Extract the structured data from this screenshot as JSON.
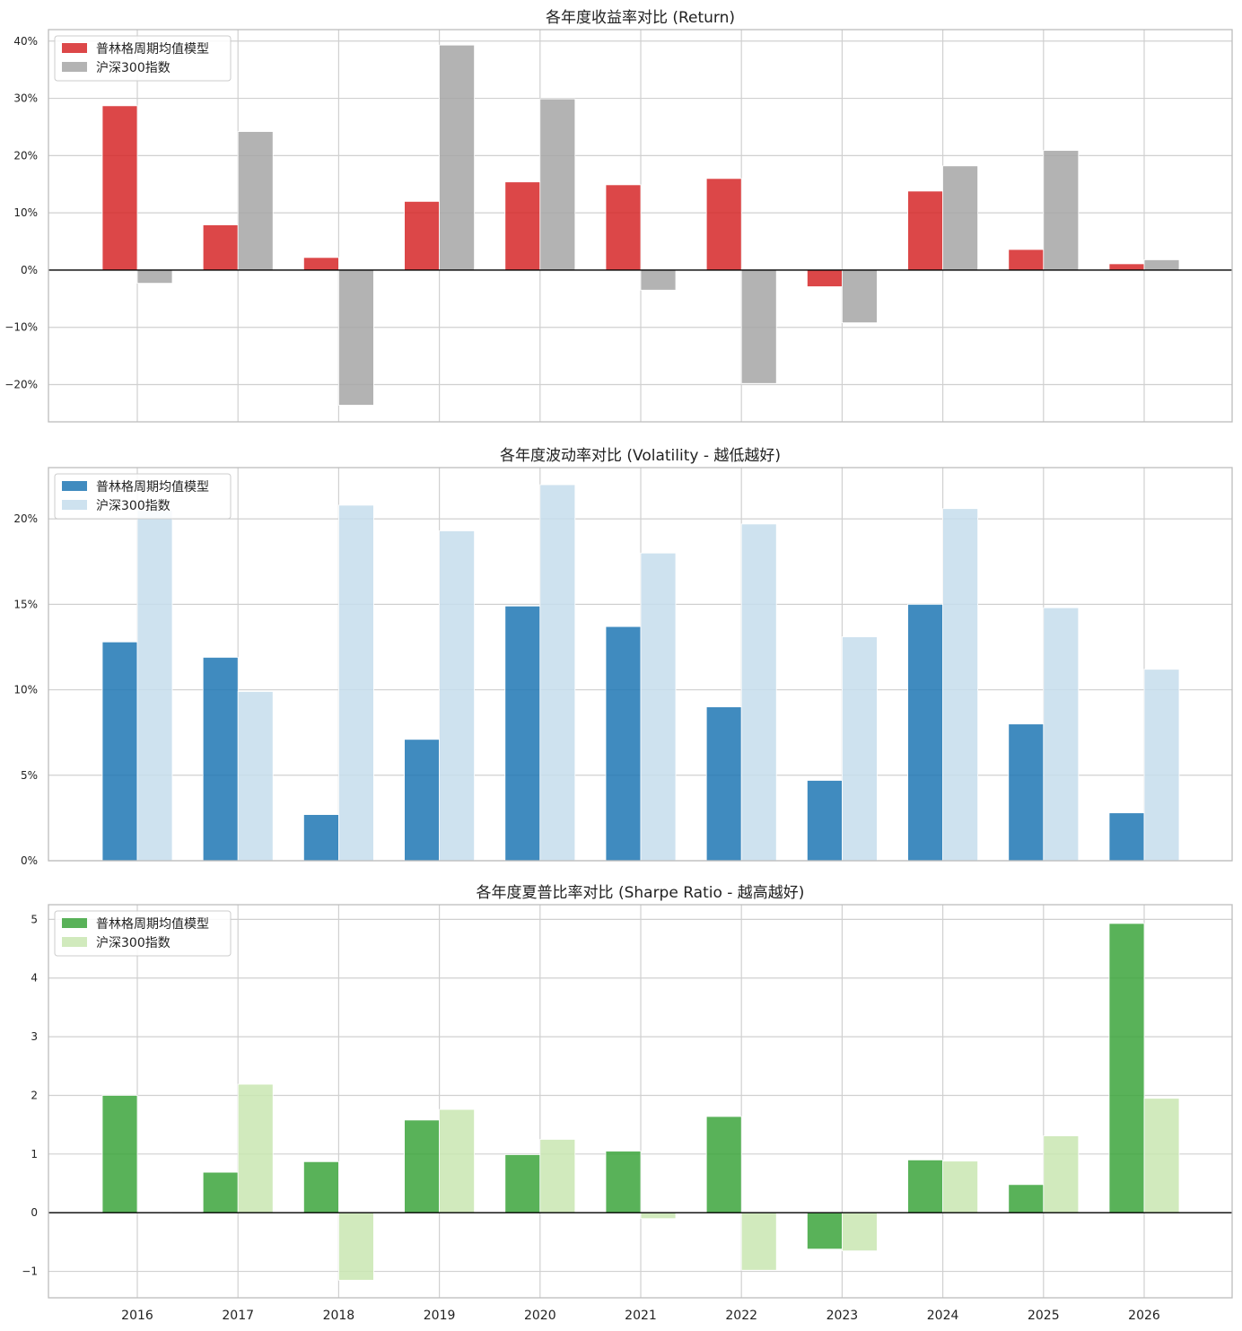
{
  "colors": {
    "strategy_return": "#d62728",
    "benchmark_return": "#a6a6a6",
    "strategy_vol": "#1f77b4",
    "benchmark_vol": "#c6ddec",
    "strategy_sharpe": "#3ca43c",
    "benchmark_sharpe": "#c9e6b1",
    "grid": "#d0d0d0",
    "frame": "#bdbdbd",
    "zero_line": "#000000"
  },
  "chart_data": [
    {
      "type": "bar",
      "title": "各年度收益率对比 (Return)",
      "xlabel": "",
      "ylabel": "",
      "categories": [
        "2016",
        "2017",
        "2018",
        "2019",
        "2020",
        "2021",
        "2022",
        "2023",
        "2024",
        "2025",
        "2026"
      ],
      "series": [
        {
          "name": "普林格周期均值模型",
          "values": [
            28.7,
            7.9,
            2.2,
            12.0,
            15.4,
            14.9,
            16.0,
            -2.9,
            13.8,
            3.6,
            1.1
          ]
        },
        {
          "name": "沪深300指数",
          "values": [
            -2.3,
            24.2,
            -23.6,
            39.3,
            29.9,
            -3.5,
            -19.8,
            -9.2,
            18.2,
            20.9,
            1.8
          ]
        }
      ],
      "ylim": [
        -26.5,
        42.0
      ],
      "yticks": [
        -20,
        -10,
        0,
        10,
        20,
        30,
        40
      ],
      "ytick_labels": [
        "−20%",
        "−10%",
        "0%",
        "10%",
        "20%",
        "30%",
        "40%"
      ],
      "zero_line": true,
      "grid": true,
      "legend_position": "top-left",
      "show_xtick_labels": false
    },
    {
      "type": "bar",
      "title": "各年度波动率对比 (Volatility - 越低越好)",
      "xlabel": "",
      "ylabel": "",
      "categories": [
        "2016",
        "2017",
        "2018",
        "2019",
        "2020",
        "2021",
        "2022",
        "2023",
        "2024",
        "2025",
        "2026"
      ],
      "series": [
        {
          "name": "普林格周期均值模型",
          "values": [
            12.8,
            11.9,
            2.7,
            7.1,
            14.9,
            13.7,
            9.0,
            4.7,
            15.0,
            8.0,
            2.8
          ]
        },
        {
          "name": "沪深300指数",
          "values": [
            20.5,
            9.9,
            20.8,
            19.3,
            22.0,
            18.0,
            19.7,
            13.1,
            20.6,
            14.8,
            11.2
          ]
        }
      ],
      "ylim": [
        0,
        23.0
      ],
      "yticks": [
        0,
        5,
        10,
        15,
        20
      ],
      "ytick_labels": [
        "0%",
        "5%",
        "10%",
        "15%",
        "20%"
      ],
      "zero_line": false,
      "grid": true,
      "legend_position": "top-left",
      "show_xtick_labels": false
    },
    {
      "type": "bar",
      "title": "各年度夏普比率对比 (Sharpe Ratio - 越高越好)",
      "xlabel": "",
      "ylabel": "",
      "categories": [
        "2016",
        "2017",
        "2018",
        "2019",
        "2020",
        "2021",
        "2022",
        "2023",
        "2024",
        "2025",
        "2026"
      ],
      "series": [
        {
          "name": "普林格周期均值模型",
          "values": [
            2.0,
            0.69,
            0.87,
            1.58,
            0.99,
            1.05,
            1.64,
            -0.62,
            0.9,
            0.48,
            4.93
          ]
        },
        {
          "name": "沪深300指数",
          "values": [
            0.0,
            2.19,
            -1.15,
            1.76,
            1.25,
            -0.1,
            -0.98,
            -0.65,
            0.88,
            1.31,
            1.95
          ]
        }
      ],
      "ylim": [
        -1.45,
        5.25
      ],
      "yticks": [
        -1,
        0,
        1,
        2,
        3,
        4,
        5
      ],
      "ytick_labels": [
        "−1",
        "0",
        "1",
        "2",
        "3",
        "4",
        "5"
      ],
      "zero_line": true,
      "grid": true,
      "legend_position": "top-left",
      "show_xtick_labels": true
    }
  ]
}
